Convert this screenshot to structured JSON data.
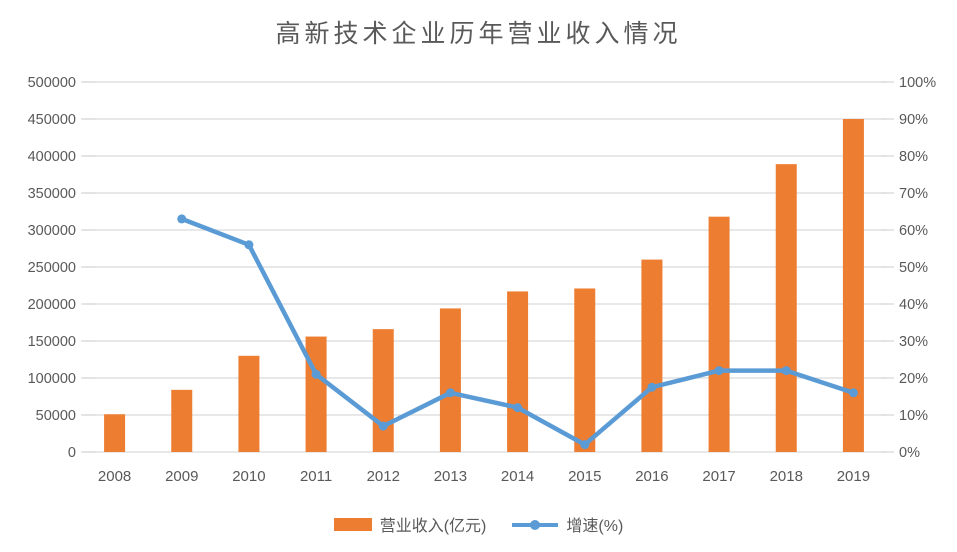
{
  "title": "高新技术企业历年营业收入情况",
  "colors": {
    "bar": "#ED7D31",
    "line": "#5B9BD5",
    "axis_text": "#595959",
    "gridline": "#D9D9D9",
    "title_text": "#595959",
    "background": "#FFFFFF"
  },
  "chart_data": {
    "type": "combo bar+line",
    "title": "高新技术企业历年营业收入情况",
    "categories": [
      "2008",
      "2009",
      "2010",
      "2011",
      "2012",
      "2013",
      "2014",
      "2015",
      "2016",
      "2017",
      "2018",
      "2019"
    ],
    "series": [
      {
        "name": "营业收入(亿元)",
        "type": "bar",
        "axis": "left",
        "color": "#ED7D31",
        "values": [
          51000,
          84000,
          130000,
          156000,
          166000,
          194000,
          217000,
          221000,
          260000,
          318000,
          389000,
          450000
        ]
      },
      {
        "name": "增速(%)",
        "type": "line",
        "axis": "right",
        "color": "#5B9BD5",
        "values": [
          null,
          63,
          56,
          21,
          7,
          16,
          12,
          2,
          17.5,
          22,
          22,
          16
        ]
      }
    ],
    "left_axis": {
      "min": 0,
      "max": 500000,
      "step": 50000,
      "tick_labels": [
        "500000",
        "450000",
        "400000",
        "350000",
        "300000",
        "250000",
        "200000",
        "150000",
        "100000",
        "50000",
        "0"
      ]
    },
    "right_axis": {
      "min": 0,
      "max": 100,
      "step": 10,
      "tick_labels": [
        "100%",
        "90%",
        "80%",
        "70%",
        "60%",
        "50%",
        "40%",
        "30%",
        "20%",
        "10%",
        "0%"
      ]
    },
    "grid": "horizontal",
    "legend_position": "bottom"
  }
}
